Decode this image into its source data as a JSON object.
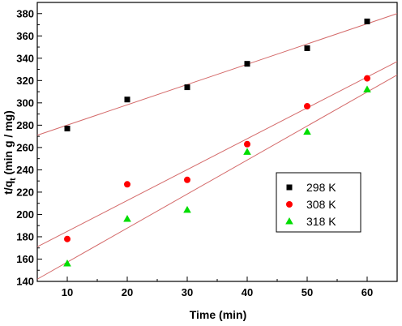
{
  "chart_data": {
    "type": "scatter",
    "title": "",
    "xlabel": "Time (min)",
    "ylabel": {
      "base": "t/q",
      "sub": "t",
      "rest": " (min g / mg)"
    },
    "xlim": [
      5,
      65
    ],
    "ylim": [
      140,
      390
    ],
    "xticks": [
      10,
      20,
      30,
      40,
      50,
      60
    ],
    "yticks": [
      140,
      160,
      180,
      200,
      220,
      240,
      260,
      280,
      300,
      320,
      340,
      360,
      380
    ],
    "grid": false,
    "legend_position": "middle-right",
    "series": [
      {
        "name": "298 K",
        "marker": "square",
        "color": "#000000",
        "x": [
          10,
          20,
          30,
          40,
          50,
          60
        ],
        "y": [
          277,
          303,
          314,
          335,
          349,
          373
        ],
        "fit": {
          "x": [
            5,
            65
          ],
          "y": [
            271,
            380
          ]
        }
      },
      {
        "name": "308 K",
        "marker": "circle",
        "color": "#ff0000",
        "x": [
          10,
          20,
          30,
          40,
          50,
          60
        ],
        "y": [
          178,
          227,
          231,
          263,
          297,
          322
        ],
        "fit": {
          "x": [
            5,
            65
          ],
          "y": [
            171,
            337
          ]
        }
      },
      {
        "name": "318 K",
        "marker": "triangle",
        "color": "#00dd00",
        "x": [
          10,
          20,
          30,
          40,
          50,
          60
        ],
        "y": [
          156,
          196,
          204,
          256,
          274,
          312
        ],
        "fit": {
          "x": [
            5,
            65
          ],
          "y": [
            142,
            325
          ]
        }
      }
    ],
    "fit_line_color": "#d46a6a"
  }
}
